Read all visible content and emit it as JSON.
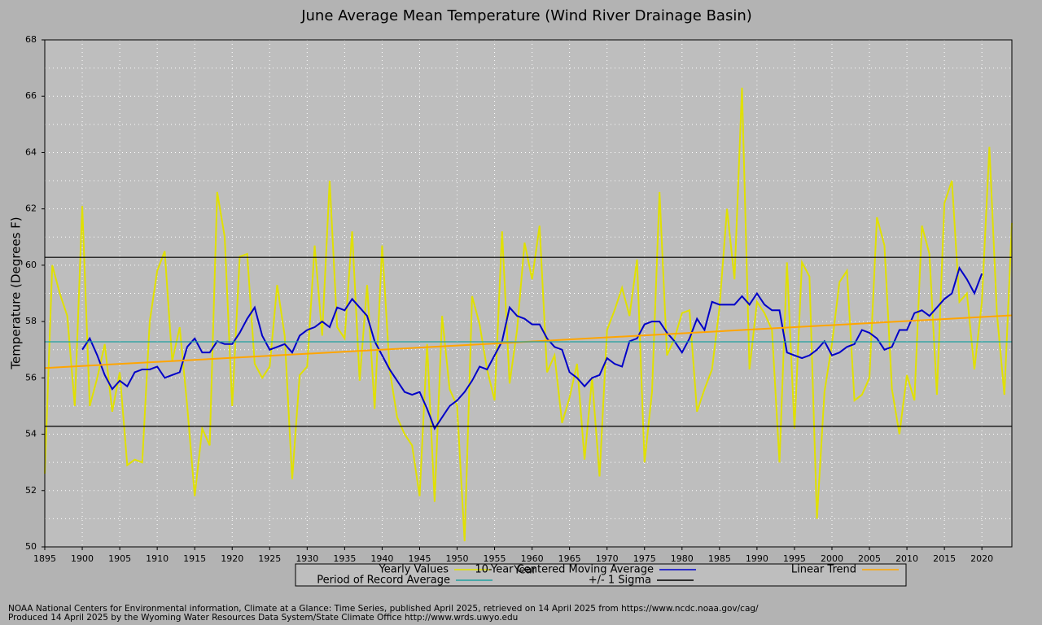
{
  "chart_data": {
    "type": "line",
    "title": "June Average Mean Temperature (Wind River Drainage Basin)",
    "x_label": "Year",
    "y_label": "Temperature (Degrees F)",
    "x": [
      1895,
      1896,
      1897,
      1898,
      1899,
      1900,
      1901,
      1902,
      1903,
      1904,
      1905,
      1906,
      1907,
      1908,
      1909,
      1910,
      1911,
      1912,
      1913,
      1914,
      1915,
      1916,
      1917,
      1918,
      1919,
      1920,
      1921,
      1922,
      1923,
      1924,
      1925,
      1926,
      1927,
      1928,
      1929,
      1930,
      1931,
      1932,
      1933,
      1934,
      1935,
      1936,
      1937,
      1938,
      1939,
      1940,
      1941,
      1942,
      1943,
      1944,
      1945,
      1946,
      1947,
      1948,
      1949,
      1950,
      1951,
      1952,
      1953,
      1954,
      1955,
      1956,
      1957,
      1958,
      1959,
      1960,
      1961,
      1962,
      1963,
      1964,
      1965,
      1966,
      1967,
      1968,
      1969,
      1970,
      1971,
      1972,
      1973,
      1974,
      1975,
      1976,
      1977,
      1978,
      1979,
      1980,
      1981,
      1982,
      1983,
      1984,
      1985,
      1986,
      1987,
      1988,
      1989,
      1990,
      1991,
      1992,
      1993,
      1994,
      1995,
      1996,
      1997,
      1998,
      1999,
      2000,
      2001,
      2002,
      2003,
      2004,
      2005,
      2006,
      2007,
      2008,
      2009,
      2010,
      2011,
      2012,
      2013,
      2014,
      2015,
      2016,
      2017,
      2018,
      2019,
      2020,
      2021,
      2022,
      2023,
      2024
    ],
    "series": [
      {
        "name": "Yearly Values",
        "color": "#e0e000",
        "width": 2,
        "values": [
          52.6,
          60.0,
          59.0,
          58.2,
          55.0,
          62.1,
          55.0,
          56.0,
          57.2,
          54.8,
          56.2,
          52.9,
          53.1,
          53.0,
          58.0,
          59.8,
          60.5,
          56.6,
          57.8,
          55.0,
          51.8,
          54.2,
          53.6,
          62.6,
          61.0,
          55.0,
          60.3,
          60.4,
          56.5,
          56.0,
          56.4,
          59.3,
          57.5,
          52.4,
          56.1,
          56.4,
          60.7,
          57.5,
          63.0,
          57.8,
          57.4,
          61.2,
          55.9,
          59.3,
          54.9,
          60.7,
          56.3,
          54.6,
          54.0,
          53.6,
          51.8,
          57.2,
          51.6,
          58.2,
          55.6,
          55.0,
          50.2,
          58.9,
          57.9,
          56.3,
          55.2,
          61.2,
          55.8,
          57.7,
          60.8,
          59.5,
          61.4,
          56.2,
          56.8,
          54.4,
          55.3,
          56.5,
          53.1,
          56.0,
          52.5,
          57.7,
          58.4,
          59.2,
          58.2,
          60.2,
          53.0,
          55.5,
          62.6,
          56.8,
          57.4,
          58.3,
          58.4,
          54.8,
          55.6,
          56.3,
          58.5,
          62.0,
          59.5,
          66.3,
          56.3,
          58.7,
          58.3,
          57.7,
          53.0,
          60.1,
          54.2,
          60.1,
          59.6,
          51.0,
          55.5,
          57.2,
          59.4,
          59.8,
          55.2,
          55.4,
          56.0,
          61.7,
          60.7,
          55.6,
          54.0,
          56.1,
          55.2,
          61.4,
          60.4,
          55.4,
          62.2,
          63.0,
          58.7,
          59.0,
          56.3,
          58.7,
          64.2,
          58.3,
          55.4,
          61.5
        ]
      },
      {
        "name": "10-Year Centered Moving Average",
        "color": "#0000c8",
        "width": 2,
        "values": [
          null,
          null,
          null,
          null,
          null,
          57.0,
          57.4,
          56.8,
          56.1,
          55.6,
          55.9,
          55.7,
          56.2,
          56.3,
          56.3,
          56.4,
          56.0,
          56.1,
          56.2,
          57.1,
          57.4,
          56.9,
          56.9,
          57.3,
          57.2,
          57.2,
          57.6,
          58.1,
          58.5,
          57.5,
          57.0,
          57.1,
          57.2,
          56.9,
          57.5,
          57.7,
          57.8,
          58.0,
          57.8,
          58.5,
          58.4,
          58.8,
          58.5,
          58.2,
          57.3,
          56.8,
          56.3,
          55.9,
          55.5,
          55.4,
          55.5,
          54.9,
          54.2,
          54.6,
          55.0,
          55.2,
          55.5,
          55.9,
          56.4,
          56.3,
          56.8,
          57.3,
          58.5,
          58.2,
          58.1,
          57.9,
          57.9,
          57.4,
          57.1,
          57.0,
          56.2,
          56.0,
          55.7,
          56.0,
          56.1,
          56.7,
          56.5,
          56.4,
          57.3,
          57.4,
          57.9,
          58.0,
          58.0,
          57.6,
          57.3,
          56.9,
          57.4,
          58.1,
          57.7,
          58.7,
          58.6,
          58.6,
          58.6,
          58.9,
          58.6,
          59.0,
          58.6,
          58.4,
          58.4,
          56.9,
          56.8,
          56.7,
          56.8,
          57.0,
          57.3,
          56.8,
          56.9,
          57.1,
          57.2,
          57.7,
          57.6,
          57.4,
          57.0,
          57.1,
          57.7,
          57.7,
          58.3,
          58.4,
          58.2,
          58.5,
          58.8,
          59.0,
          59.9,
          59.5,
          59.0,
          59.7,
          null,
          null,
          null,
          null
        ]
      }
    ],
    "trend": {
      "name": "Linear Trend",
      "color": "#ffa500",
      "x": [
        1895,
        2024
      ],
      "values": [
        56.35,
        58.22
      ]
    },
    "levels": [
      {
        "name": "Period of Record Average",
        "color": "#20a0a0",
        "values": [
          57.28
        ]
      },
      {
        "name": "+/- 1 Sigma",
        "color": "#000000",
        "values": [
          60.28,
          54.28
        ]
      }
    ],
    "xlim": [
      1895,
      2024
    ],
    "xticks": [
      1895,
      1900,
      1905,
      1910,
      1915,
      1920,
      1925,
      1930,
      1935,
      1940,
      1945,
      1950,
      1955,
      1960,
      1965,
      1970,
      1975,
      1980,
      1985,
      1990,
      1995,
      2000,
      2005,
      2010,
      2015,
      2020
    ],
    "ylim": [
      50,
      68
    ],
    "yticks": [
      50,
      52,
      54,
      56,
      58,
      60,
      62,
      64,
      66,
      68
    ],
    "y_minor_ticks": [
      51,
      53,
      55,
      57,
      59,
      61,
      63,
      65,
      67
    ],
    "grid": true,
    "footer": [
      "NOAA National Centers for Environmental information, Climate at a Glance: Time Series, published April 2025, retrieved on 14 April 2025 from https://www.ncdc.noaa.gov/cag/",
      "Produced 14 April 2025 by the Wyoming Water Resources Data System/State Climate Office http://www.wrds.uwyo.edu"
    ]
  }
}
